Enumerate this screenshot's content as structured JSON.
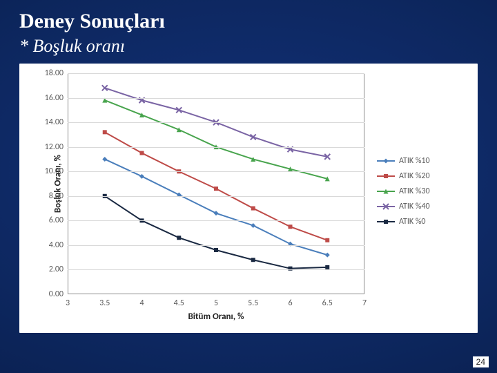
{
  "slide": {
    "title": "Deney Sonuçları",
    "subtitle": "* Boşluk oranı",
    "page_number": "24",
    "background_gradient": [
      "#12317a",
      "#0d275f",
      "#06163b"
    ]
  },
  "chart": {
    "type": "line",
    "background_color": "#ffffff",
    "grid_color": "#d9d9d9",
    "axis_color": "#8a8a8a",
    "x": {
      "label": "Bitüm Oranı, %",
      "min": 3,
      "max": 7,
      "ticks": [
        3,
        3.5,
        4,
        4.5,
        5,
        5.5,
        6,
        6.5,
        7
      ],
      "tick_labels": [
        "3",
        "3.5",
        "4",
        "4.5",
        "5",
        "5.5",
        "6",
        "6.5",
        "7"
      ],
      "label_fontsize": 13,
      "tick_fontsize": 12
    },
    "y": {
      "label": "Boşluk Oranı, %",
      "min": 0,
      "max": 18,
      "ticks": [
        0,
        2,
        4,
        6,
        8,
        10,
        12,
        14,
        16,
        18
      ],
      "tick_labels": [
        "0.00",
        "2.00",
        "4.00",
        "6.00",
        "8.00",
        "10.00",
        "12.00",
        "14.00",
        "16.00",
        "18.00"
      ],
      "label_fontsize": 13,
      "tick_fontsize": 12
    },
    "series": [
      {
        "name": "ATIK %10",
        "color": "#4a7ebb",
        "marker": "diamond",
        "line_width": 2,
        "marker_size": 7,
        "x": [
          3.5,
          4,
          4.5,
          5,
          5.5,
          6,
          6.5
        ],
        "y": [
          11.0,
          9.6,
          8.1,
          6.6,
          5.6,
          4.1,
          3.2
        ]
      },
      {
        "name": "ATIK %20",
        "color": "#be4b48",
        "marker": "square",
        "line_width": 2,
        "marker_size": 6,
        "x": [
          3.5,
          4,
          4.5,
          5,
          5.5,
          6,
          6.5
        ],
        "y": [
          13.2,
          11.5,
          10.0,
          8.6,
          7.0,
          5.5,
          4.4
        ]
      },
      {
        "name": "ATIK %30",
        "color": "#48a44d",
        "marker": "triangle",
        "line_width": 2,
        "marker_size": 7,
        "x": [
          3.5,
          4,
          4.5,
          5,
          5.5,
          6,
          6.5
        ],
        "y": [
          15.8,
          14.6,
          13.4,
          12.0,
          11.0,
          10.2,
          9.4
        ]
      },
      {
        "name": "ATIK %40",
        "color": "#7a64a4",
        "marker": "x",
        "line_width": 2,
        "marker_size": 8,
        "x": [
          3.5,
          4,
          4.5,
          5,
          5.5,
          6,
          6.5
        ],
        "y": [
          16.8,
          15.8,
          15.0,
          14.0,
          12.8,
          11.8,
          11.2
        ]
      },
      {
        "name": "ATIK %0",
        "color": "#1a2942",
        "marker": "square",
        "line_width": 2,
        "marker_size": 6,
        "x": [
          3.5,
          4,
          4.5,
          5,
          5.5,
          6,
          6.5
        ],
        "y": [
          8.0,
          6.0,
          4.6,
          3.6,
          2.8,
          2.1,
          2.2
        ]
      }
    ]
  }
}
